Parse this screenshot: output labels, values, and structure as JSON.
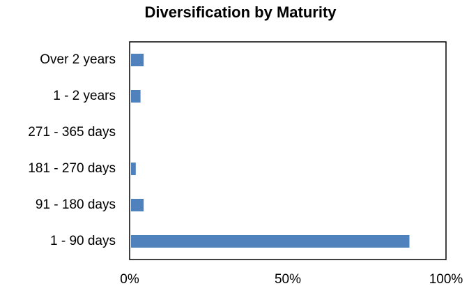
{
  "chart_data": {
    "type": "hbar",
    "title": "Diversification by Maturity",
    "categories": [
      "Over 2 years",
      "1 - 2 years",
      "271 - 365 days",
      "181 - 270 days",
      "91 - 180 days",
      "1 - 90 days"
    ],
    "values": [
      4,
      3,
      0,
      1.5,
      4,
      88
    ],
    "color": "#4f81bd",
    "xlim": [
      0,
      100
    ],
    "xticks": [
      {
        "value": 0,
        "label": "0%"
      },
      {
        "value": 50,
        "label": "50%"
      },
      {
        "value": 100,
        "label": "100%"
      }
    ],
    "grid": false
  }
}
